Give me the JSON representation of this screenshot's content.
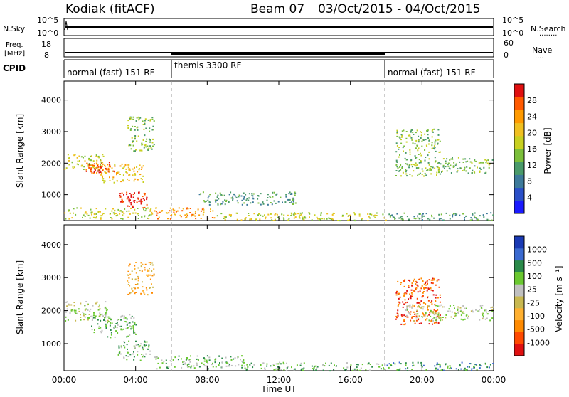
{
  "header": {
    "station": "Kodiak (fitACF)",
    "beam": "Beam 07",
    "date_range": "03/Oct/2015 - 04/Oct/2015"
  },
  "nsky": {
    "label": "N.Sky",
    "left_ticks": [
      "10^5",
      "10^0"
    ],
    "right_ticks": [
      "10^5",
      "10^0"
    ],
    "right_label": "N.Search",
    "right_marker": "........"
  },
  "freq": {
    "label_line1": "Freq.",
    "label_line2": "[MHz]",
    "left_ticks": [
      "18",
      "8"
    ],
    "right_ticks": [
      "60",
      "0"
    ],
    "right_label": "Nave",
    "right_marker": "...."
  },
  "cpid": {
    "label": "CPID",
    "segments": [
      "normal (fast) 151 RF",
      "themis 3300 RF",
      "normal (fast) 151 RF"
    ]
  },
  "colors": {
    "power": [
      "#1a1aff",
      "#2a4fc8",
      "#3d7a9a",
      "#4a9a6a",
      "#7bbf3a",
      "#c8d020",
      "#f0c020",
      "#ff9a00",
      "#ff5a00",
      "#e01010"
    ],
    "velocity": [
      "#1a3ab4",
      "#3a6ad0",
      "#2a8a4a",
      "#6ac830",
      "#c0c0c0",
      "#c8b850",
      "#ffb030",
      "#ff8a00",
      "#ff4a00",
      "#e01010"
    ]
  },
  "chart_data": [
    {
      "type": "heatmap",
      "title": "Power",
      "xlabel": "Time UT",
      "ylabel": "Slant Range [km]",
      "xticks": [
        "00:00",
        "04:00",
        "08:00",
        "12:00",
        "16:00",
        "20:00",
        "00:00"
      ],
      "xlim_hours": [
        0,
        24
      ],
      "ylim": [
        180,
        4600
      ],
      "yticks": [
        1000,
        2000,
        3000,
        4000
      ],
      "colorbar_label": "Power [dB]",
      "colorbar_ticks": [
        "4",
        "8",
        "12",
        "16",
        "20",
        "24",
        "28"
      ],
      "scatter_regions": [
        {
          "t": [
            0.0,
            2.2
          ],
          "r": [
            1800,
            2300
          ],
          "level": 5
        },
        {
          "t": [
            1.2,
            2.8
          ],
          "r": [
            1700,
            2050
          ],
          "level": 8
        },
        {
          "t": [
            2.0,
            4.5
          ],
          "r": [
            1400,
            2000
          ],
          "level": 6
        },
        {
          "t": [
            3.0,
            4.6
          ],
          "r": [
            600,
            1100
          ],
          "level": 9
        },
        {
          "t": [
            3.5,
            5.0
          ],
          "r": [
            2400,
            3500
          ],
          "level": 4
        },
        {
          "t": [
            0.0,
            5.0
          ],
          "r": [
            250,
            600
          ],
          "level": 5
        },
        {
          "t": [
            5.0,
            8.5
          ],
          "r": [
            250,
            600
          ],
          "level": 7
        },
        {
          "t": [
            8.5,
            18.0
          ],
          "r": [
            200,
            450
          ],
          "level": 5
        },
        {
          "t": [
            7.5,
            13.0
          ],
          "r": [
            700,
            1100
          ],
          "level": 3
        },
        {
          "t": [
            18.5,
            21.0
          ],
          "r": [
            1600,
            3100
          ],
          "level": 4
        },
        {
          "t": [
            21.0,
            24.0
          ],
          "r": [
            1700,
            2200
          ],
          "level": 4
        },
        {
          "t": [
            18.0,
            24.0
          ],
          "r": [
            200,
            450
          ],
          "level": 3
        }
      ]
    },
    {
      "type": "heatmap",
      "title": "Velocity",
      "xlabel": "Time UT",
      "ylabel": "Slant Range [km]",
      "xticks": [
        "00:00",
        "04:00",
        "08:00",
        "12:00",
        "16:00",
        "20:00",
        "00:00"
      ],
      "xlim_hours": [
        0,
        24
      ],
      "ylim": [
        180,
        4600
      ],
      "yticks": [
        1000,
        2000,
        3000,
        4000
      ],
      "colorbar_label": "Velocity [m s⁻¹]",
      "colorbar_ticks": [
        "1000",
        "500",
        "100",
        "25",
        "-25",
        "-100",
        "-500",
        "-1000"
      ],
      "scatter_regions": [
        {
          "t": [
            0.0,
            2.5
          ],
          "r": [
            1700,
            2300
          ],
          "level": 4
        },
        {
          "t": [
            1.5,
            4.0
          ],
          "r": [
            1200,
            1900
          ],
          "level": 3
        },
        {
          "t": [
            3.0,
            4.8
          ],
          "r": [
            500,
            1100
          ],
          "level": 3
        },
        {
          "t": [
            3.5,
            5.0
          ],
          "r": [
            2500,
            3500
          ],
          "level": 6
        },
        {
          "t": [
            5.0,
            10.0
          ],
          "r": [
            250,
            650
          ],
          "level": 3
        },
        {
          "t": [
            10.0,
            18.0
          ],
          "r": [
            200,
            450
          ],
          "level": 3
        },
        {
          "t": [
            18.5,
            21.0
          ],
          "r": [
            1600,
            3000
          ],
          "level": 8
        },
        {
          "t": [
            19.0,
            24.0
          ],
          "r": [
            1700,
            2200
          ],
          "level": 4
        },
        {
          "t": [
            18.0,
            24.0
          ],
          "r": [
            200,
            450
          ],
          "level": 2
        }
      ]
    }
  ]
}
